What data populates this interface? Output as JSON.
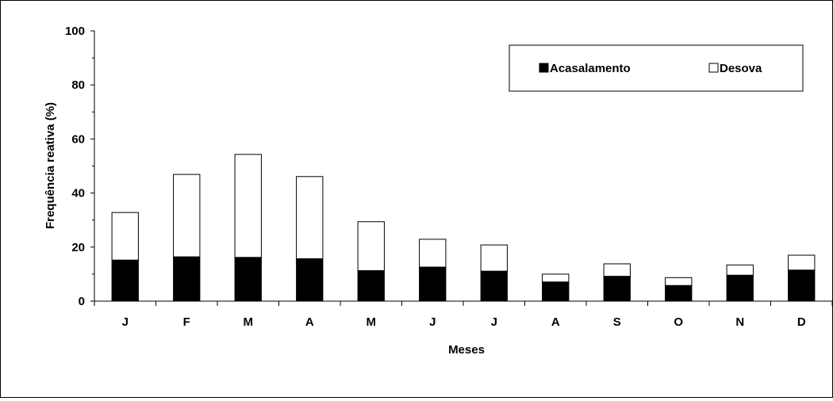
{
  "chart_data": {
    "type": "bar",
    "stacked": true,
    "categories": [
      "J",
      "F",
      "M",
      "A",
      "M",
      "J",
      "J",
      "A",
      "S",
      "O",
      "N",
      "D"
    ],
    "series": [
      {
        "name": "Acasalamento",
        "values": [
          15.2,
          16.4,
          16.2,
          15.7,
          11.3,
          12.6,
          11.1,
          7.1,
          9.2,
          5.8,
          9.6,
          11.5
        ],
        "color": "#000000"
      },
      {
        "name": "Desova",
        "values": [
          17.6,
          30.5,
          38.1,
          30.4,
          18.1,
          10.3,
          9.7,
          2.9,
          4.6,
          2.9,
          3.8,
          5.5
        ],
        "color": "#ffffff"
      }
    ],
    "title": "",
    "xlabel": "Meses",
    "ylabel": "Frequência reativa (%)",
    "ylim": [
      0,
      100
    ],
    "yticks": [
      0,
      20,
      40,
      60,
      80,
      100
    ],
    "grid": false,
    "legend_position": "top-right"
  }
}
